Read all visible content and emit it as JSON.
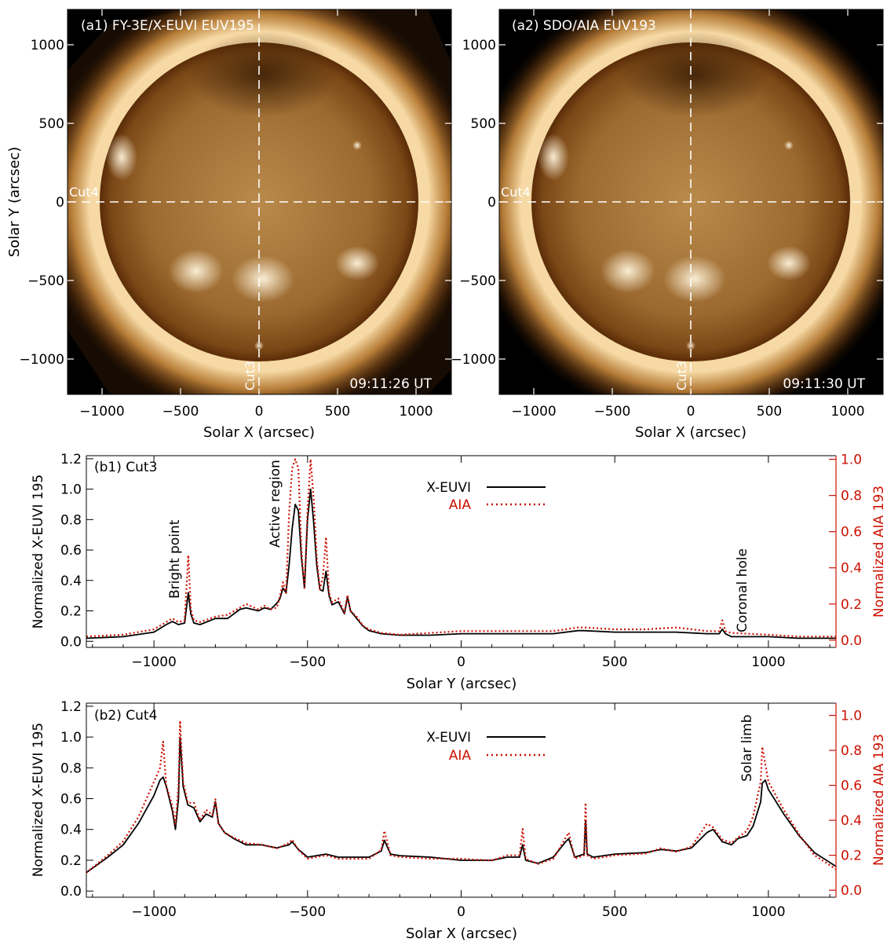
{
  "figure": {
    "panel_a1": {
      "title": "(a1) FY-3E/X-EUVI EUV195",
      "timestamp": "09:11:26 UT",
      "cut3_label": "Cut3",
      "cut4_label": "Cut4",
      "xlabel": "Solar X (arcsec)",
      "ylabel": "Solar Y (arcsec)",
      "xticks": [
        "−1000",
        "−500",
        "0",
        "500",
        "1000"
      ],
      "yticks": [
        "1000",
        "500",
        "0",
        "−500",
        "−1000"
      ]
    },
    "panel_a2": {
      "title": "(a2) SDO/AIA EUV193",
      "timestamp": "09:11:30 UT",
      "cut3_label": "Cut3",
      "cut4_label": "Cut4",
      "xlabel": "Solar X (arcsec)",
      "xticks": [
        "−1000",
        "−500",
        "0",
        "500",
        "1000"
      ],
      "yticks": [
        "1000",
        "500",
        "0",
        "−500",
        "−1000"
      ]
    },
    "image_colors": {
      "disk_center": "#b98a4c",
      "disk_edge": "#5a2c08",
      "corona": "#f6d9a4",
      "background": "#000000"
    }
  },
  "chart_data": [
    {
      "id": "b1",
      "type": "line",
      "panel_label": "(b1) Cut3",
      "xlabel": "Solar Y (arcsec)",
      "ylabel_left": "Normalized X-EUVI 195",
      "ylabel_right": "Normalized AIA 193",
      "xlim": [
        -1220,
        1220
      ],
      "ylim_left": [
        -0.04,
        1.22
      ],
      "ylim_right": [
        -0.04,
        1.02
      ],
      "xticks": [
        -1000,
        -500,
        0,
        500,
        1000
      ],
      "xtick_labels": [
        "−1000",
        "−500",
        "0",
        "500",
        "1000"
      ],
      "yticks_left": [
        0.0,
        0.2,
        0.4,
        0.6,
        0.8,
        1.0,
        1.2
      ],
      "ytick_labels_left": [
        "0.0",
        "0.2",
        "0.4",
        "0.6",
        "0.8",
        "1.0",
        "1.2"
      ],
      "yticks_right": [
        0.0,
        0.2,
        0.4,
        0.6,
        0.8,
        1.0
      ],
      "ytick_labels_right": [
        "0.0",
        "0.2",
        "0.4",
        "0.6",
        "0.8",
        "1.0"
      ],
      "legend": {
        "position": "top-center"
      },
      "series": [
        {
          "name": "X-EUVI",
          "color": "#000000",
          "style": "solid",
          "x": [
            -1220,
            -1100,
            -1000,
            -960,
            -940,
            -920,
            -900,
            -888,
            -880,
            -870,
            -850,
            -800,
            -760,
            -720,
            -700,
            -660,
            -640,
            -620,
            -600,
            -590,
            -580,
            -570,
            -560,
            -550,
            -540,
            -530,
            -520,
            -510,
            -500,
            -490,
            -480,
            -470,
            -460,
            -450,
            -440,
            -430,
            -420,
            -400,
            -380,
            -370,
            -360,
            -340,
            -320,
            -300,
            -280,
            -260,
            -200,
            -100,
            0,
            100,
            200,
            300,
            380,
            400,
            500,
            600,
            700,
            800,
            840,
            850,
            860,
            880,
            1000,
            1100,
            1220
          ],
          "y": [
            0.02,
            0.03,
            0.06,
            0.11,
            0.13,
            0.11,
            0.12,
            0.32,
            0.18,
            0.12,
            0.11,
            0.15,
            0.15,
            0.21,
            0.22,
            0.2,
            0.22,
            0.21,
            0.25,
            0.28,
            0.35,
            0.32,
            0.5,
            0.74,
            0.9,
            0.86,
            0.55,
            0.35,
            0.8,
            1.0,
            0.78,
            0.5,
            0.34,
            0.33,
            0.46,
            0.3,
            0.24,
            0.26,
            0.18,
            0.29,
            0.2,
            0.15,
            0.1,
            0.07,
            0.06,
            0.05,
            0.04,
            0.04,
            0.05,
            0.05,
            0.05,
            0.05,
            0.07,
            0.07,
            0.06,
            0.06,
            0.06,
            0.05,
            0.05,
            0.08,
            0.05,
            0.03,
            0.03,
            0.02,
            0.02
          ]
        },
        {
          "name": "AIA",
          "color": "#cc1100",
          "style": "dotted",
          "x": [
            -1220,
            -1100,
            -1000,
            -960,
            -940,
            -920,
            -900,
            -888,
            -880,
            -870,
            -850,
            -800,
            -760,
            -720,
            -700,
            -660,
            -640,
            -620,
            -600,
            -590,
            -580,
            -570,
            -560,
            -550,
            -540,
            -530,
            -520,
            -510,
            -500,
            -490,
            -480,
            -470,
            -460,
            -450,
            -440,
            -430,
            -420,
            -400,
            -380,
            -370,
            -360,
            -340,
            -320,
            -300,
            -280,
            -260,
            -200,
            -100,
            0,
            100,
            200,
            300,
            380,
            400,
            500,
            600,
            700,
            800,
            840,
            850,
            860,
            880,
            1000,
            1100,
            1220
          ],
          "y": [
            0.02,
            0.03,
            0.06,
            0.1,
            0.12,
            0.1,
            0.11,
            0.47,
            0.17,
            0.11,
            0.1,
            0.13,
            0.14,
            0.18,
            0.2,
            0.17,
            0.19,
            0.17,
            0.18,
            0.24,
            0.32,
            0.26,
            0.7,
            0.95,
            1.0,
            0.95,
            0.5,
            0.28,
            0.72,
            1.0,
            0.78,
            0.46,
            0.28,
            0.35,
            0.57,
            0.26,
            0.21,
            0.23,
            0.15,
            0.25,
            0.16,
            0.13,
            0.08,
            0.06,
            0.05,
            0.04,
            0.03,
            0.04,
            0.05,
            0.05,
            0.05,
            0.05,
            0.07,
            0.07,
            0.06,
            0.06,
            0.07,
            0.05,
            0.05,
            0.11,
            0.05,
            0.04,
            0.03,
            0.02,
            0.02
          ]
        }
      ],
      "annotations": [
        {
          "text": "Bright point",
          "x": -930,
          "y": 0.54
        },
        {
          "text": "Active region",
          "x": -600,
          "y": 0.81
        },
        {
          "text": "Coronal hole",
          "x": 910,
          "y": 0.38
        }
      ]
    },
    {
      "id": "b2",
      "type": "line",
      "panel_label": "(b2) Cut4",
      "xlabel": "Solar X (arcsec)",
      "ylabel_left": "Normalized X-EUVI 195",
      "ylabel_right": "Normalized AIA 193",
      "xlim": [
        -1220,
        1220
      ],
      "ylim_left": [
        -0.04,
        1.22
      ],
      "ylim_right": [
        -0.04,
        1.07
      ],
      "xticks": [
        -1000,
        -500,
        0,
        500,
        1000
      ],
      "xtick_labels": [
        "−1000",
        "−500",
        "0",
        "500",
        "1000"
      ],
      "yticks_left": [
        0.0,
        0.2,
        0.4,
        0.6,
        0.8,
        1.0,
        1.2
      ],
      "ytick_labels_left": [
        "0.0",
        "0.2",
        "0.4",
        "0.6",
        "0.8",
        "1.0",
        "1.2"
      ],
      "yticks_right": [
        0.0,
        0.2,
        0.4,
        0.6,
        0.8,
        1.0
      ],
      "ytick_labels_right": [
        "0.0",
        "0.2",
        "0.4",
        "0.6",
        "0.8",
        "1.0"
      ],
      "legend": {
        "position": "top-center"
      },
      "series": [
        {
          "name": "X-EUVI",
          "color": "#000000",
          "style": "solid",
          "x": [
            -1220,
            -1150,
            -1100,
            -1050,
            -1000,
            -980,
            -970,
            -960,
            -940,
            -930,
            -920,
            -915,
            -905,
            -890,
            -870,
            -850,
            -830,
            -810,
            -800,
            -790,
            -770,
            -740,
            -700,
            -650,
            -600,
            -560,
            -550,
            -530,
            -500,
            -440,
            -400,
            -300,
            -260,
            -250,
            -230,
            -200,
            -100,
            0,
            100,
            150,
            190,
            200,
            210,
            250,
            300,
            340,
            350,
            370,
            400,
            405,
            410,
            430,
            500,
            600,
            650,
            700,
            750,
            800,
            820,
            850,
            880,
            900,
            930,
            950,
            975,
            980,
            990,
            1000,
            1050,
            1100,
            1150,
            1220
          ],
          "y": [
            0.12,
            0.22,
            0.3,
            0.44,
            0.62,
            0.72,
            0.74,
            0.68,
            0.52,
            0.4,
            0.6,
            1.0,
            0.68,
            0.56,
            0.54,
            0.45,
            0.5,
            0.48,
            0.58,
            0.44,
            0.38,
            0.34,
            0.3,
            0.3,
            0.28,
            0.3,
            0.32,
            0.27,
            0.22,
            0.24,
            0.22,
            0.22,
            0.26,
            0.33,
            0.24,
            0.23,
            0.22,
            0.2,
            0.2,
            0.22,
            0.22,
            0.3,
            0.2,
            0.18,
            0.22,
            0.32,
            0.34,
            0.22,
            0.24,
            0.46,
            0.24,
            0.22,
            0.24,
            0.25,
            0.27,
            0.26,
            0.28,
            0.38,
            0.4,
            0.32,
            0.3,
            0.34,
            0.36,
            0.42,
            0.58,
            0.7,
            0.72,
            0.66,
            0.5,
            0.36,
            0.25,
            0.16
          ]
        },
        {
          "name": "AIA",
          "color": "#cc1100",
          "style": "dotted",
          "x": [
            -1220,
            -1150,
            -1100,
            -1050,
            -1000,
            -980,
            -970,
            -960,
            -940,
            -930,
            -920,
            -915,
            -905,
            -890,
            -870,
            -850,
            -830,
            -810,
            -800,
            -790,
            -770,
            -740,
            -700,
            -650,
            -600,
            -560,
            -550,
            -530,
            -500,
            -440,
            -400,
            -300,
            -260,
            -250,
            -230,
            -200,
            -100,
            0,
            100,
            150,
            190,
            200,
            210,
            250,
            300,
            340,
            350,
            370,
            400,
            405,
            410,
            430,
            500,
            600,
            650,
            700,
            750,
            800,
            820,
            850,
            880,
            900,
            930,
            950,
            975,
            980,
            990,
            1000,
            1050,
            1100,
            1150,
            1220
          ],
          "y": [
            0.1,
            0.2,
            0.28,
            0.42,
            0.62,
            0.7,
            0.85,
            0.6,
            0.48,
            0.38,
            0.6,
            0.97,
            0.62,
            0.5,
            0.5,
            0.4,
            0.46,
            0.43,
            0.52,
            0.38,
            0.33,
            0.3,
            0.27,
            0.26,
            0.24,
            0.27,
            0.29,
            0.23,
            0.18,
            0.2,
            0.18,
            0.18,
            0.23,
            0.34,
            0.2,
            0.19,
            0.18,
            0.18,
            0.17,
            0.2,
            0.2,
            0.35,
            0.18,
            0.15,
            0.18,
            0.3,
            0.33,
            0.18,
            0.2,
            0.5,
            0.2,
            0.18,
            0.2,
            0.21,
            0.24,
            0.22,
            0.25,
            0.38,
            0.36,
            0.29,
            0.27,
            0.3,
            0.34,
            0.42,
            0.62,
            0.82,
            0.72,
            0.62,
            0.46,
            0.32,
            0.2,
            0.12
          ]
        }
      ],
      "annotations": [
        {
          "text": "Solar limb",
          "x": 960,
          "y": 0.86
        }
      ]
    }
  ]
}
